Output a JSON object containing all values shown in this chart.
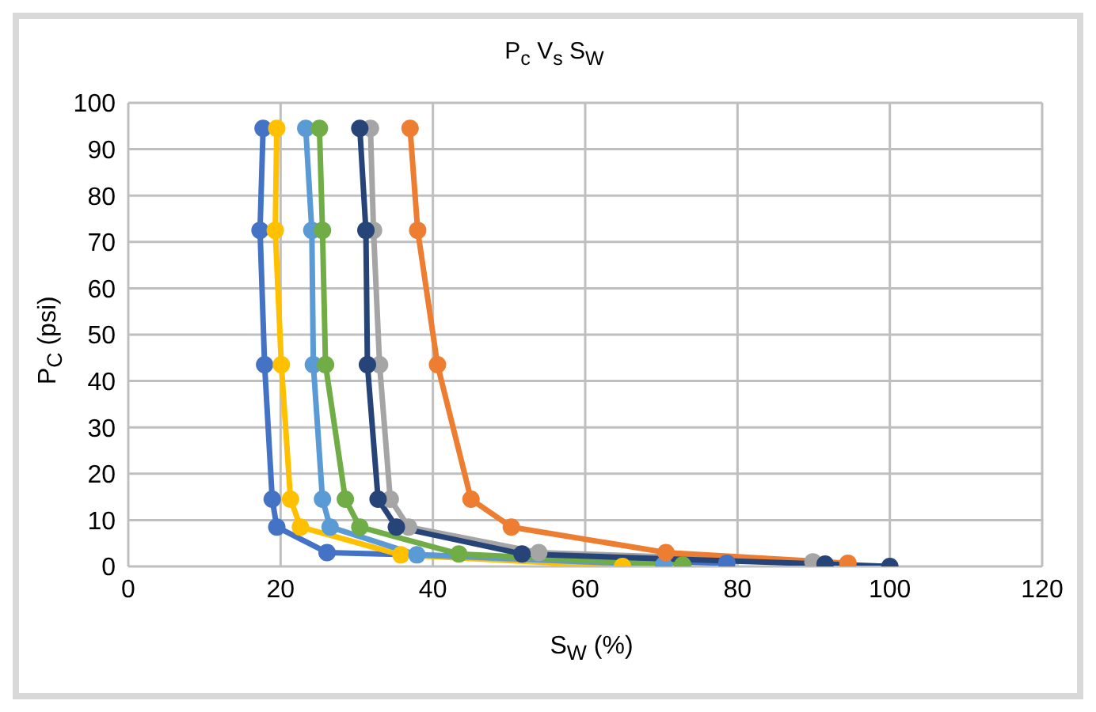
{
  "chart_data": {
    "type": "line",
    "title": "P$_{c}$ V$_{s}$ S$_{W}$",
    "xlabel": "S$_{W}$ (%)",
    "ylabel": "P$_{C}$ (psi)",
    "xlim": [
      0,
      120
    ],
    "xticks": [
      0,
      20,
      40,
      60,
      80,
      100,
      120
    ],
    "ylim": [
      0,
      100
    ],
    "yticks": [
      0,
      10,
      20,
      30,
      40,
      50,
      60,
      70,
      80,
      90,
      100
    ],
    "grid": true,
    "marker": "circle",
    "line_style": "solid",
    "series": [
      {
        "color": "#4472c4",
        "x": [
          17.7,
          17.3,
          17.9,
          18.9,
          19.5,
          26.1,
          78.6
        ],
        "values": [
          94.5,
          72.5,
          43.5,
          14.5,
          8.5,
          3,
          0.7
        ]
      },
      {
        "color": "#ffc000",
        "x": [
          19.5,
          19.3,
          20.1,
          21.3,
          22.6,
          35.8,
          64.9
        ],
        "values": [
          94.5,
          72.5,
          43.5,
          14.5,
          8.5,
          2.5,
          0
        ]
      },
      {
        "color": "#5b9bd5",
        "x": [
          23.3,
          24.1,
          24.3,
          25.5,
          26.5,
          37.9,
          70.3
        ],
        "values": [
          94.5,
          72.5,
          43.5,
          14.5,
          8.5,
          2.5,
          0.3
        ]
      },
      {
        "color": "#70ad47",
        "x": [
          25.1,
          25.5,
          25.9,
          28.5,
          30.4,
          43.4,
          72.8
        ],
        "values": [
          94.5,
          72.5,
          43.5,
          14.5,
          8.5,
          2.7,
          0.3
        ]
      },
      {
        "color": "#a5a5a5",
        "x": [
          31.8,
          32.2,
          33,
          34.4,
          36.8,
          53.9,
          89.9
        ],
        "values": [
          94.5,
          72.5,
          43.5,
          14.5,
          8.5,
          3,
          1
        ]
      },
      {
        "color": "#ed7d31",
        "x": [
          37,
          38,
          40.6,
          45,
          50.3,
          70.6,
          94.5
        ],
        "values": [
          94.5,
          72.5,
          43.5,
          14.5,
          8.5,
          3,
          0.7
        ]
      },
      {
        "color": "#264478",
        "x": [
          30.4,
          31.2,
          31.4,
          32.8,
          35.2,
          51.7,
          91.5,
          100
        ],
        "values": [
          94.5,
          72.5,
          43.5,
          14.5,
          8.5,
          2.7,
          0.5,
          0
        ]
      }
    ]
  }
}
